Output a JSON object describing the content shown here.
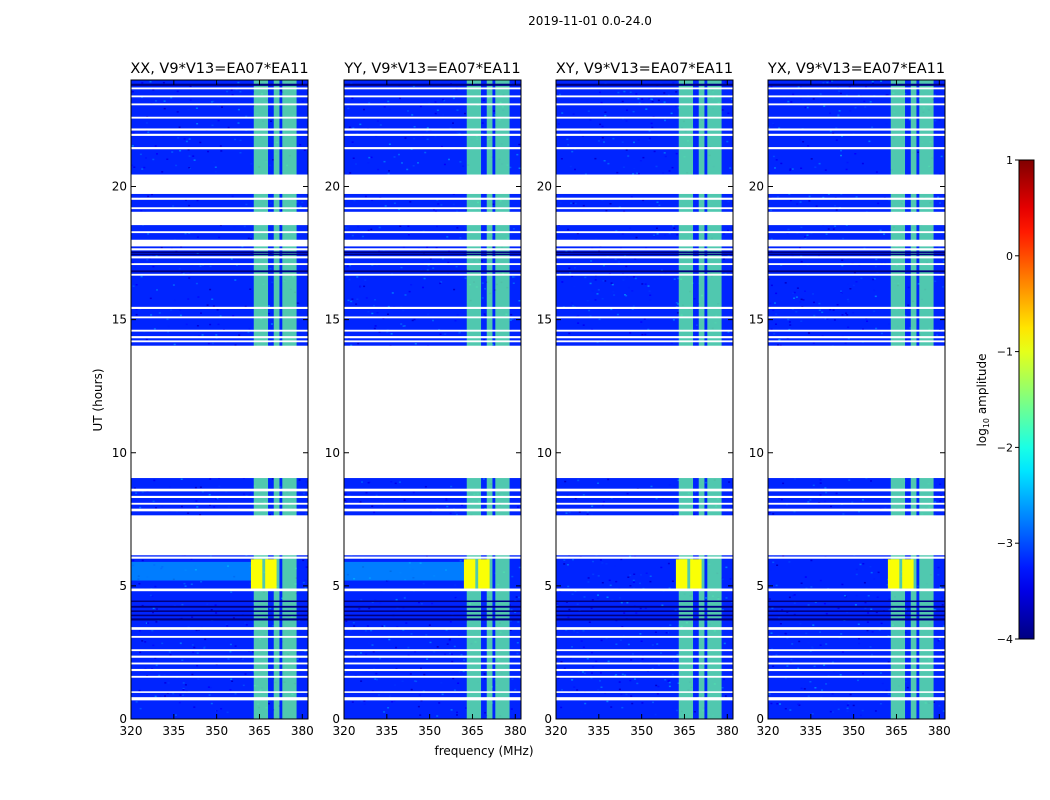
{
  "chart_data": {
    "type": "heatmap",
    "title": "2019-11-01 0.0-24.0",
    "xlabel": "frequency (MHz)",
    "ylabel": "UT (hours)",
    "xlim": [
      320,
      382
    ],
    "ylim": [
      0,
      24
    ],
    "xticks": [
      320,
      335,
      350,
      365,
      380
    ],
    "yticks": [
      0,
      5,
      10,
      15,
      20
    ],
    "panels": [
      {
        "name": "XX",
        "title": "XX, V9*V13=EA07*EA11"
      },
      {
        "name": "YY",
        "title": "YY, V9*V13=EA07*EA11"
      },
      {
        "name": "XY",
        "title": "XY, V9*V13=EA07*EA11"
      },
      {
        "name": "YX",
        "title": "YX, V9*V13=EA07*EA11"
      }
    ],
    "colorbar": {
      "label": "log10 amplitude",
      "label_main": "log",
      "label_sub": "10",
      "label_rest": " amplitude",
      "range": [
        -4,
        1
      ],
      "ticks": [
        -4,
        -3,
        -2,
        -1,
        0,
        1
      ],
      "tick_labels": [
        "−4",
        "−3",
        "−2",
        "−1",
        "0",
        "1"
      ],
      "colormap": "jet"
    },
    "background_log_amp": -3.2,
    "rfi_bands_mhz": [
      [
        363,
        368
      ],
      [
        370,
        372
      ],
      [
        373,
        378
      ]
    ],
    "rfi_log_amp": -1.6,
    "strong_rfi_hours": [
      4.9,
      6.0
    ],
    "strong_rfi_bands_mhz": [
      [
        362,
        366
      ],
      [
        367,
        371
      ]
    ],
    "strong_rfi_log_amp": -0.9,
    "flagged_ut_ranges": [
      [
        0.7,
        0.82
      ],
      [
        0.98,
        1.04
      ],
      [
        1.55,
        1.62
      ],
      [
        1.8,
        1.88
      ],
      [
        2.05,
        2.12
      ],
      [
        2.3,
        2.38
      ],
      [
        2.55,
        2.62
      ],
      [
        3.05,
        3.12
      ],
      [
        3.35,
        3.45
      ],
      [
        4.8,
        4.9
      ],
      [
        6.02,
        6.1
      ],
      [
        6.15,
        7.65
      ],
      [
        7.8,
        7.9
      ],
      [
        8.05,
        8.12
      ],
      [
        8.3,
        8.38
      ],
      [
        8.55,
        8.65
      ],
      [
        9.05,
        14.02
      ],
      [
        14.15,
        14.22
      ],
      [
        14.3,
        14.38
      ],
      [
        14.55,
        14.62
      ],
      [
        15.05,
        15.12
      ],
      [
        15.4,
        15.48
      ],
      [
        16.65,
        16.72
      ],
      [
        17.05,
        17.12
      ],
      [
        17.3,
        17.38
      ],
      [
        17.6,
        17.68
      ],
      [
        17.75,
        18.0
      ],
      [
        18.25,
        18.32
      ],
      [
        18.55,
        19.05
      ],
      [
        19.15,
        19.22
      ],
      [
        19.5,
        19.58
      ],
      [
        19.72,
        20.45
      ],
      [
        21.4,
        21.48
      ],
      [
        21.9,
        21.98
      ],
      [
        22.1,
        22.18
      ],
      [
        22.55,
        22.62
      ],
      [
        23.05,
        23.12
      ],
      [
        23.35,
        23.42
      ],
      [
        23.65,
        23.72
      ]
    ],
    "dark_ut_ranges": [
      [
        3.7,
        3.78
      ],
      [
        3.86,
        3.92
      ],
      [
        4.02,
        4.08
      ],
      [
        4.18,
        4.25
      ],
      [
        4.4,
        4.45
      ],
      [
        16.78,
        16.85
      ],
      [
        17.42,
        17.48
      ],
      [
        17.52,
        17.56
      ],
      [
        23.78,
        23.86
      ]
    ]
  }
}
